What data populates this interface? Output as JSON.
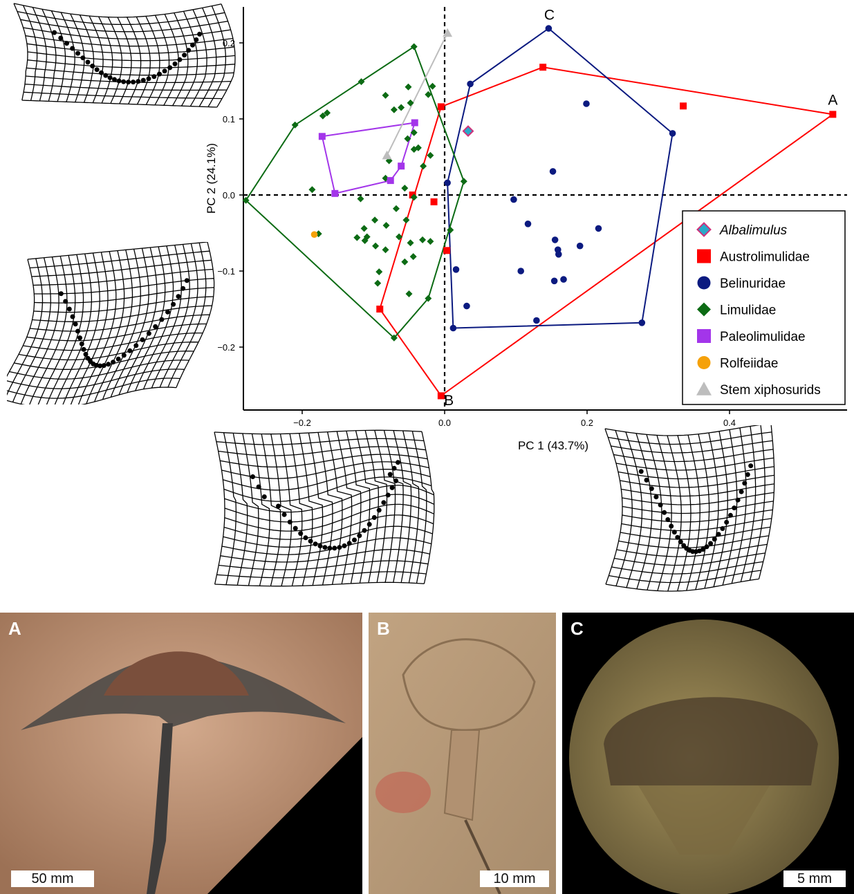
{
  "chart_data": {
    "type": "scatter",
    "xlabel": "PC 1 (43.7%)",
    "ylabel": "PC 2 (24.1%)",
    "xlim": [
      -0.29,
      0.56
    ],
    "ylim": [
      -0.285,
      0.245
    ],
    "xticks": [
      -0.2,
      0.0,
      0.2,
      0.4
    ],
    "xtick_labels": [
      "−0.2",
      "0.0",
      "0.2",
      "0.4"
    ],
    "yticks": [
      -0.2,
      -0.1,
      0.0,
      0.1,
      0.2
    ],
    "ytick_labels": [
      "−0.2",
      "−0.1",
      "0.0",
      "0.1",
      "0.2"
    ],
    "grid": false,
    "zero_lines": "dashed",
    "legend_position": "right",
    "annotations": [
      {
        "text": "A",
        "x": 0.545,
        "y": 0.125
      },
      {
        "text": "B",
        "x": 0.006,
        "y": -0.27
      },
      {
        "text": "C",
        "x": 0.147,
        "y": 0.237
      }
    ],
    "series": [
      {
        "name": "Albalimulus",
        "italic": true,
        "marker": "diamond-outlined",
        "color": "#2aa9c9",
        "edge": "#d1307a",
        "points": [
          [
            0.033,
            0.084
          ]
        ],
        "hull": []
      },
      {
        "name": "Austrolimulidae",
        "marker": "square",
        "color": "#ff0000",
        "points": [
          [
            -0.005,
            0.116
          ],
          [
            0.138,
            0.168
          ],
          [
            0.545,
            0.106
          ],
          [
            0.335,
            0.117
          ],
          [
            -0.045,
            0.0
          ],
          [
            -0.015,
            -0.009
          ],
          [
            0.003,
            -0.073
          ],
          [
            -0.091,
            -0.15
          ],
          [
            -0.005,
            -0.264
          ]
        ],
        "hull": [
          [
            -0.005,
            0.116
          ],
          [
            0.138,
            0.168
          ],
          [
            0.545,
            0.106
          ],
          [
            -0.005,
            -0.264
          ],
          [
            -0.091,
            -0.15
          ]
        ]
      },
      {
        "name": "Belinuridae",
        "marker": "circle",
        "color": "#0b1a80",
        "points": [
          [
            0.146,
            0.219
          ],
          [
            0.036,
            0.146
          ],
          [
            0.199,
            0.12
          ],
          [
            0.32,
            0.081
          ],
          [
            0.152,
            0.031
          ],
          [
            0.004,
            0.016
          ],
          [
            0.097,
            -0.006
          ],
          [
            0.117,
            -0.038
          ],
          [
            0.216,
            -0.044
          ],
          [
            0.155,
            -0.059
          ],
          [
            0.159,
            -0.072
          ],
          [
            0.19,
            -0.067
          ],
          [
            0.16,
            -0.078
          ],
          [
            0.016,
            -0.098
          ],
          [
            0.107,
            -0.1
          ],
          [
            0.154,
            -0.113
          ],
          [
            0.167,
            -0.111
          ],
          [
            0.031,
            -0.146
          ],
          [
            0.129,
            -0.165
          ],
          [
            0.277,
            -0.168
          ],
          [
            0.012,
            -0.175
          ]
        ],
        "hull": [
          [
            0.146,
            0.219
          ],
          [
            0.32,
            0.081
          ],
          [
            0.277,
            -0.168
          ],
          [
            0.012,
            -0.175
          ],
          [
            0.004,
            0.016
          ],
          [
            0.036,
            0.146
          ]
        ]
      },
      {
        "name": "Limulidae",
        "marker": "diamond",
        "color": "#0c6b14",
        "points": [
          [
            -0.043,
            0.195
          ],
          [
            -0.117,
            0.149
          ],
          [
            -0.051,
            0.142
          ],
          [
            -0.017,
            0.143
          ],
          [
            -0.083,
            0.131
          ],
          [
            -0.023,
            0.132
          ],
          [
            -0.048,
            0.121
          ],
          [
            -0.061,
            0.115
          ],
          [
            -0.21,
            0.092
          ],
          [
            -0.165,
            0.108
          ],
          [
            -0.171,
            0.104
          ],
          [
            -0.071,
            0.112
          ],
          [
            -0.043,
            0.082
          ],
          [
            -0.052,
            0.074
          ],
          [
            -0.037,
            0.062
          ],
          [
            -0.043,
            0.06
          ],
          [
            -0.02,
            0.052
          ],
          [
            -0.078,
            0.045
          ],
          [
            -0.03,
            0.038
          ],
          [
            -0.083,
            0.022
          ],
          [
            -0.186,
            0.007
          ],
          [
            -0.056,
            0.009
          ],
          [
            -0.043,
            -0.003
          ],
          [
            0.027,
            0.018
          ],
          [
            -0.118,
            -0.005
          ],
          [
            -0.068,
            -0.018
          ],
          [
            -0.054,
            -0.033
          ],
          [
            -0.098,
            -0.033
          ],
          [
            -0.082,
            -0.04
          ],
          [
            -0.113,
            -0.044
          ],
          [
            -0.177,
            -0.051
          ],
          [
            -0.123,
            -0.056
          ],
          [
            -0.109,
            -0.055
          ],
          [
            -0.064,
            -0.055
          ],
          [
            -0.112,
            -0.06
          ],
          [
            -0.031,
            -0.059
          ],
          [
            -0.048,
            -0.063
          ],
          [
            -0.02,
            -0.061
          ],
          [
            0.008,
            -0.046
          ],
          [
            -0.097,
            -0.067
          ],
          [
            -0.083,
            -0.072
          ],
          [
            -0.044,
            -0.081
          ],
          [
            -0.056,
            -0.088
          ],
          [
            -0.092,
            -0.101
          ],
          [
            -0.094,
            -0.116
          ],
          [
            -0.05,
            -0.13
          ],
          [
            -0.023,
            -0.136
          ],
          [
            -0.071,
            -0.188
          ],
          [
            -0.279,
            -0.007
          ]
        ],
        "hull": [
          [
            -0.043,
            0.195
          ],
          [
            0.027,
            0.018
          ],
          [
            -0.023,
            -0.136
          ],
          [
            -0.071,
            -0.188
          ],
          [
            -0.279,
            -0.007
          ],
          [
            -0.21,
            0.092
          ]
        ]
      },
      {
        "name": "Paleolimulidae",
        "marker": "square",
        "color": "#a335ea",
        "points": [
          [
            -0.172,
            0.077
          ],
          [
            -0.042,
            0.095
          ],
          [
            -0.061,
            0.038
          ],
          [
            -0.076,
            0.019
          ],
          [
            -0.154,
            0.002
          ]
        ],
        "hull": [
          [
            -0.172,
            0.077
          ],
          [
            -0.042,
            0.095
          ],
          [
            -0.061,
            0.038
          ],
          [
            -0.076,
            0.019
          ],
          [
            -0.154,
            0.002
          ]
        ]
      },
      {
        "name": "Rolfeiidae",
        "marker": "circle",
        "color": "#f5a10a",
        "points": [
          [
            -0.183,
            -0.052
          ]
        ],
        "hull": []
      },
      {
        "name": "Stem xiphosurids",
        "marker": "triangle",
        "color": "#bdbdbd",
        "points": [
          [
            0.004,
            0.213
          ],
          [
            -0.081,
            0.052
          ]
        ],
        "hull": [
          [
            0.004,
            0.213
          ],
          [
            -0.081,
            0.052
          ]
        ]
      }
    ]
  },
  "photos": [
    {
      "letter": "A",
      "scale": "50 mm",
      "tone": "#b38669"
    },
    {
      "letter": "B",
      "scale": "10 mm",
      "tone": "#b79b79"
    },
    {
      "letter": "C",
      "scale": "5 mm",
      "tone": "#8f7d4e"
    }
  ]
}
